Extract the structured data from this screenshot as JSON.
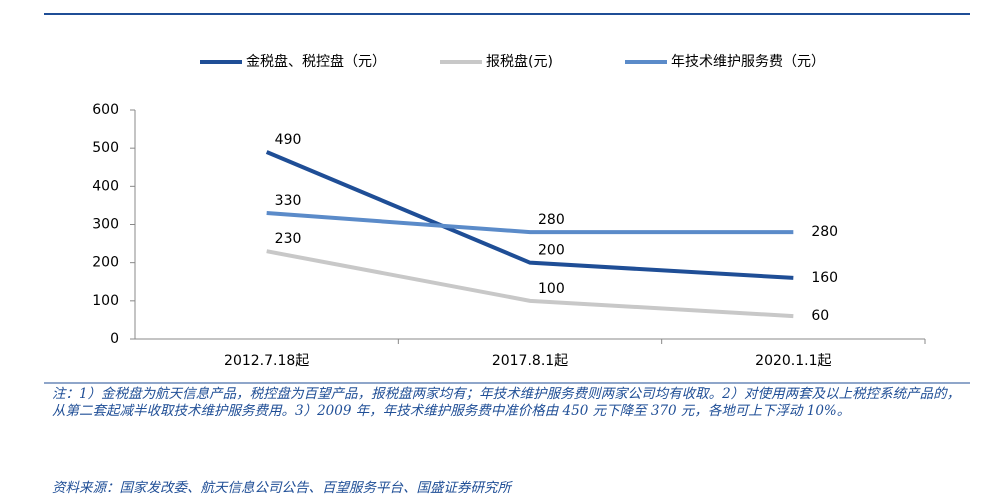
{
  "chart_data": {
    "type": "line",
    "categories": [
      "2012.7.18起",
      "2017.8.1起",
      "2020.1.1起"
    ],
    "series": [
      {
        "name": "金税盘、税控盘（元）",
        "color": "#1f4e96",
        "values": [
          490,
          200,
          160
        ]
      },
      {
        "name": "报税盘(元)",
        "color": "#c8c8c8",
        "values": [
          230,
          100,
          60
        ]
      },
      {
        "name": "年技术维护服务费（元）",
        "color": "#5b8bc9",
        "values": [
          330,
          280,
          280
        ]
      }
    ],
    "ylim": [
      0,
      600
    ],
    "yticks": [
      0,
      100,
      200,
      300,
      400,
      500,
      600
    ],
    "grid": false,
    "legend": "top",
    "data_labels": true
  },
  "note": "注：1）金税盘为航天信息产品，税控盘为百望产品，报税盘两家均有；年技术维护服务费则两家公司均有收取。2）对使用两套及以上税控系统产品的，从第二套起减半收取技术维护服务费用。3）2009 年，年技术维护服务费中准价格由 450 元下降至 370 元，各地可上下浮动 10%。",
  "source": "资料来源：国家发改委、航天信息公司公告、百望服务平台、国盛证券研究所"
}
